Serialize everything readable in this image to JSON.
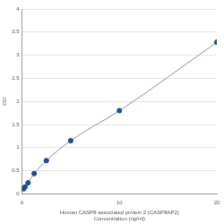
{
  "chart_data": {
    "type": "scatter",
    "x_label": [
      "Human CASP8-associated protein 2 (CASP8AP2)",
      "Concentration (ng/ml)"
    ],
    "y_label": "OD",
    "x": [
      0.156,
      0.312,
      0.625,
      1.25,
      2.5,
      5,
      10,
      20
    ],
    "values": [
      0.11,
      0.15,
      0.24,
      0.44,
      0.72,
      1.15,
      1.8,
      3.28
    ],
    "color": "#1f4e8c",
    "marker": "circle",
    "line_style": "solid",
    "xlim": [
      0,
      20
    ],
    "xticks": [
      0,
      10,
      20
    ],
    "ylim": [
      0,
      4
    ],
    "yticks": [
      0,
      0.5,
      1,
      1.5,
      2,
      2.5,
      3,
      3.5,
      4
    ],
    "grid": true
  }
}
